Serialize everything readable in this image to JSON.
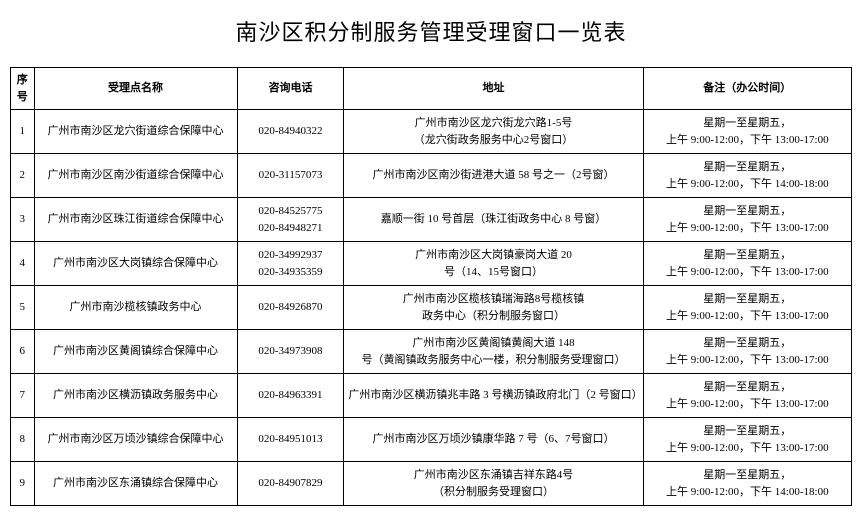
{
  "title": "南沙区积分制服务管理受理窗口一览表",
  "columns": {
    "seq": "序号",
    "name": "受理点名称",
    "phone": "咨询电话",
    "address": "地址",
    "remark": "备注（办公时间）"
  },
  "rows": [
    {
      "seq": "1",
      "name": "广州市南沙区龙穴街道综合保障中心",
      "phone": "020-84940322",
      "address_l1": "广州市南沙区龙穴街龙穴路1-5号",
      "address_l2": "（龙穴街政务服务中心2号窗口）",
      "remark_l1": "星期一至星期五，",
      "remark_l2": "上午 9:00-12:00，下午 13:00-17:00"
    },
    {
      "seq": "2",
      "name": "广州市南沙区南沙街道综合保障中心",
      "phone": "020-31157073",
      "address_l1": "广州市南沙区南沙街进港大道 58 号之一（2号窗）",
      "address_l2": "",
      "remark_l1": "星期一至星期五，",
      "remark_l2": "上午 9:00-12:00，下午 14:00-18:00"
    },
    {
      "seq": "3",
      "name": "广州市南沙区珠江街道综合保障中心",
      "phone": "020-84525775 020-84948271",
      "address_l1": "嘉顺一街 10 号首层（珠江街政务中心 8 号窗）",
      "address_l2": "",
      "remark_l1": "星期一至星期五，",
      "remark_l2": "上午 9:00-12:00，下午 13:00-17:00"
    },
    {
      "seq": "4",
      "name": "广州市南沙区大岗镇综合保障中心",
      "phone": "020-34992937 020-34935359",
      "address_l1": "广州市南沙区大岗镇豪岗大道 20",
      "address_l2": "号（14、15号窗口）",
      "remark_l1": "星期一至星期五，",
      "remark_l2": "上午 9:00-12:00，下午 13:00-17:00"
    },
    {
      "seq": "5",
      "name": "广州市南沙榄核镇政务中心",
      "phone": "020-84926870",
      "address_l1": "广州市南沙区榄核镇瑞海路8号榄核镇",
      "address_l2": "政务中心（积分制服务窗口）",
      "remark_l1": "星期一至星期五，",
      "remark_l2": "上午 9:00-12:00，下午 13:00-17:00"
    },
    {
      "seq": "6",
      "name": "广州市南沙区黄阁镇综合保障中心",
      "phone": "020-34973908",
      "address_l1": "广州市南沙区黄阁镇黄阁大道 148",
      "address_l2": "号（黄阁镇政务服务中心一楼，积分制服务受理窗口）",
      "remark_l1": "星期一至星期五，",
      "remark_l2": "上午 9:00-12:00，下午 13:00-17:00"
    },
    {
      "seq": "7",
      "name": "广州市南沙区横沥镇政务服务中心",
      "phone": "020-84963391",
      "address_l1": "广州市南沙区横沥镇兆丰路 3 号横沥镇政府北门（2 号窗口）",
      "address_l2": "",
      "remark_l1": "星期一至星期五，",
      "remark_l2": "上午 9:00-12:00，下午 13:00-17:00"
    },
    {
      "seq": "8",
      "name": "广州市南沙区万顷沙镇综合保障中心",
      "phone": "020-84951013",
      "address_l1": "广州市南沙区万顷沙镇康华路 7 号（6、7号窗口）",
      "address_l2": "",
      "remark_l1": "星期一至星期五，",
      "remark_l2": "上午 9:00-12:00，下午 13:00-17:00"
    },
    {
      "seq": "9",
      "name": "广州市南沙区东涌镇综合保障中心",
      "phone": "020-84907829",
      "address_l1": "广州市南沙区东涌镇吉祥东路4号",
      "address_l2": "（积分制服务受理窗口）",
      "remark_l1": "星期一至星期五，",
      "remark_l2": "上午 9:00-12:00，下午 14:00-18:00"
    }
  ]
}
